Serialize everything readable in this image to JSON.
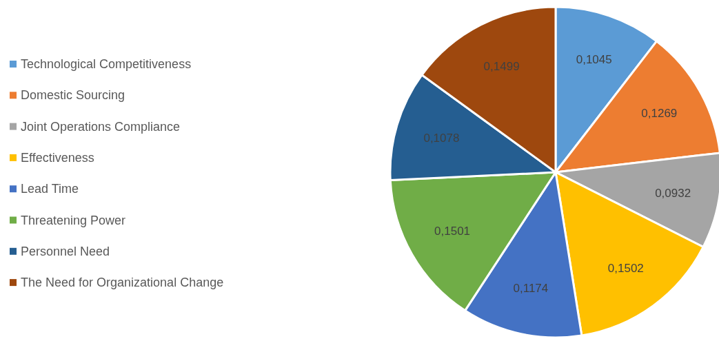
{
  "chart_data": {
    "type": "pie",
    "categories": [
      "Technological Competitiveness",
      "Domestic Sourcing",
      "Joint Operations Compliance",
      "Effectiveness",
      "Lead Time",
      "Threatening Power",
      "Personnel Need",
      "The Need for Organizational Change"
    ],
    "values": [
      0.1045,
      0.1269,
      0.0932,
      0.1502,
      0.1174,
      0.1501,
      0.1078,
      0.1499
    ],
    "value_labels": [
      "0,1045",
      "0,1269",
      "0,0932",
      "0,1502",
      "0,1174",
      "0,1501",
      "0,1078",
      "0,1499"
    ],
    "colors": [
      "#5b9bd5",
      "#ed7d31",
      "#a5a5a5",
      "#ffc000",
      "#4472c4",
      "#70ad47",
      "#255e91",
      "#9e480e"
    ],
    "legend": "left"
  }
}
